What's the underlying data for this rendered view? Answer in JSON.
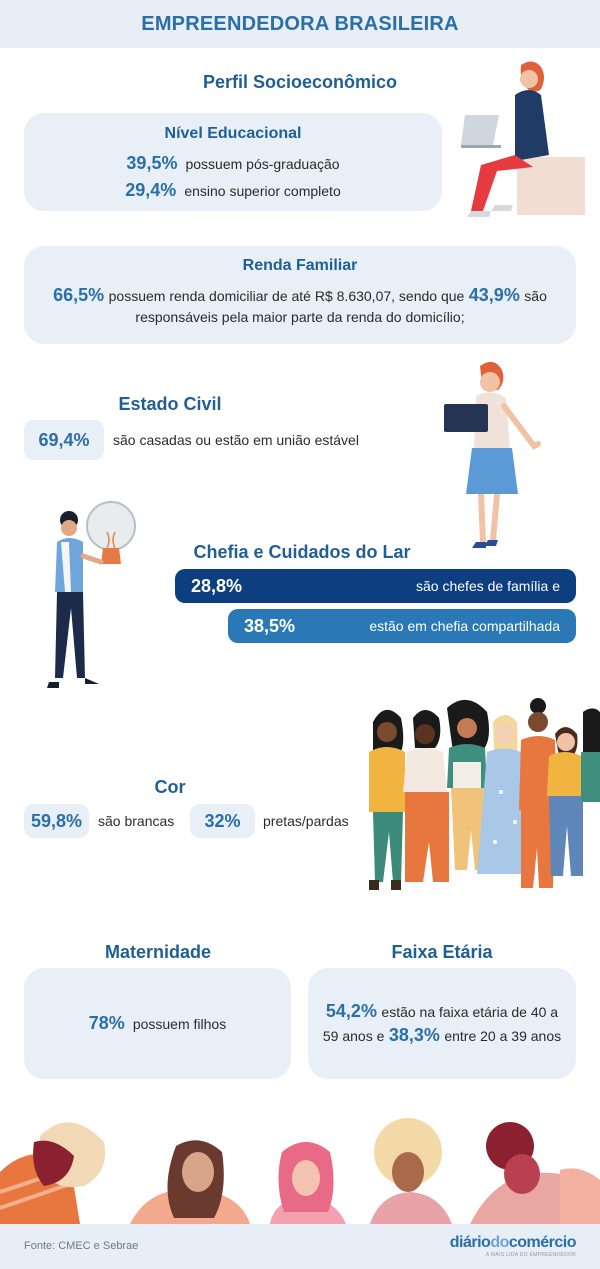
{
  "header": {
    "title": "EMPREENDEDORA BRASILEIRA"
  },
  "perfil": {
    "title": "Perfil Socioeconômico"
  },
  "nivel": {
    "title": "Nível Educacional",
    "rows": [
      {
        "pct": "39,5%",
        "text": "possuem pós-graduação"
      },
      {
        "pct": "29,4%",
        "text": "ensino superior completo"
      }
    ]
  },
  "renda": {
    "title": "Renda Familiar",
    "pct1": "66,5%",
    "text1": "possuem renda domiciliar de até R$ 8.630,07, sendo que",
    "pct2": "43,9%",
    "text2": "são",
    "text3": "responsáveis pela maior parte da renda do domicílio;"
  },
  "civil": {
    "title": "Estado Civil",
    "pct": "69,4%",
    "text": "são casadas ou estão em união estável"
  },
  "chefia": {
    "title": "Chefia e Cuidados do Lar",
    "bar1": {
      "pct": "28,8%",
      "text": "são chefes de família e"
    },
    "bar2": {
      "pct": "38,5%",
      "text": "estão em chefia compartilhada"
    }
  },
  "cor": {
    "title": "Cor",
    "a": {
      "pct": "59,8%",
      "text": "são brancas"
    },
    "b": {
      "pct": "32%",
      "text": "pretas/pardas"
    }
  },
  "maternidade": {
    "title": "Maternidade",
    "pct": "78%",
    "text": "possuem filhos"
  },
  "faixa": {
    "title": "Faixa Etária",
    "pct1": "54,2%",
    "text1": "estão na faixa etária de 40 a",
    "text2": "59 anos e",
    "pct2": "38,3%",
    "text3": "entre 20 a 39 anos"
  },
  "footer": {
    "source": "Fonte: CMEC e Sebrae",
    "logo_a": "diário",
    "logo_b": "do",
    "logo_c": "comércio",
    "logo_tag": "A MAIS LIDA DO EMPREENDEDOR"
  },
  "colors": {
    "primary": "#2a6fa8",
    "dark_bar": "#0d3f80",
    "mid_bar": "#2a78b6",
    "card_bg": "#e9eff6"
  }
}
